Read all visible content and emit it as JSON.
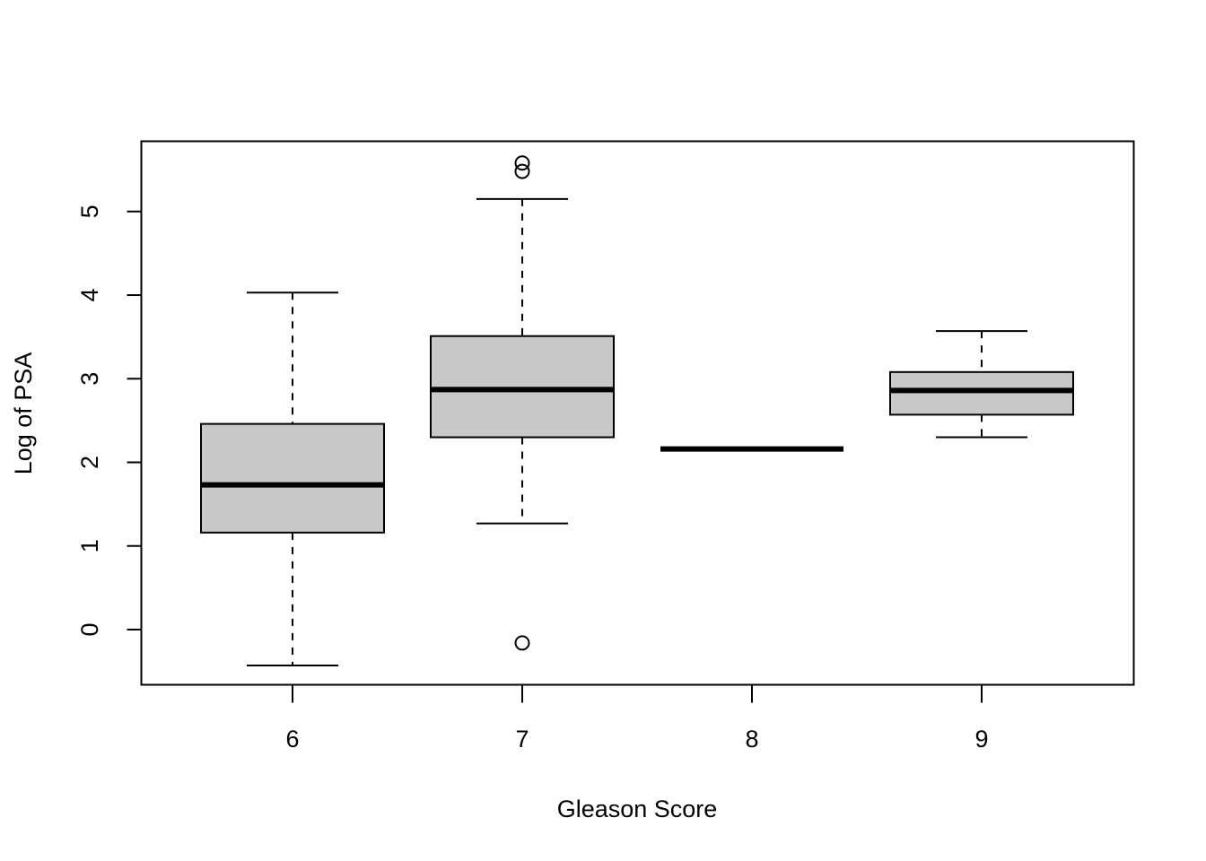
{
  "chart_data": {
    "type": "boxplot",
    "title": "",
    "xlabel": "Gleason Score",
    "ylabel": "Log of PSA",
    "categories": [
      "6",
      "7",
      "8",
      "9"
    ],
    "y_ticks": [
      "0",
      "1",
      "2",
      "3",
      "4",
      "5"
    ],
    "ylim": [
      -0.66,
      5.84
    ],
    "box_fill": "#c8c8c8",
    "boxes": [
      {
        "category": "6",
        "whisker_low": -0.43,
        "q1": 1.16,
        "median": 1.73,
        "q3": 2.46,
        "whisker_high": 4.03,
        "outliers": []
      },
      {
        "category": "7",
        "whisker_low": 1.27,
        "q1": 2.3,
        "median": 2.87,
        "q3": 3.51,
        "whisker_high": 5.15,
        "outliers": [
          -0.16,
          5.48,
          5.58
        ]
      },
      {
        "category": "8",
        "whisker_low": 2.16,
        "q1": 2.16,
        "median": 2.16,
        "q3": 2.16,
        "whisker_high": 2.16,
        "outliers": []
      },
      {
        "category": "9",
        "whisker_low": 2.3,
        "q1": 2.57,
        "median": 2.86,
        "q3": 3.08,
        "whisker_high": 3.57,
        "outliers": []
      }
    ]
  }
}
